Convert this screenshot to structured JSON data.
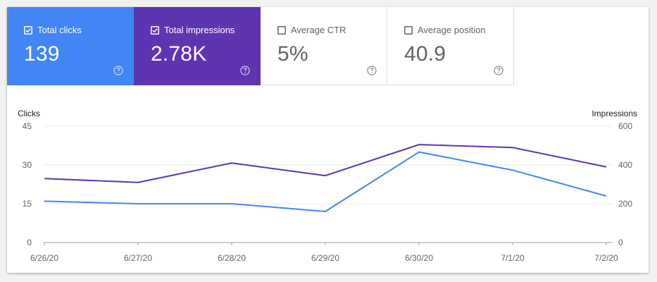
{
  "metrics": [
    {
      "label": "Total clicks",
      "value": "139",
      "checked": true,
      "color": "#4285f4"
    },
    {
      "label": "Total impressions",
      "value": "2.78K",
      "checked": true,
      "color": "#5e35b1"
    },
    {
      "label": "Average CTR",
      "value": "5%",
      "checked": false,
      "color": "#ffffff"
    },
    {
      "label": "Average position",
      "value": "40.9",
      "checked": false,
      "color": "#ffffff"
    }
  ],
  "help_icon": "question-circle-icon",
  "chart_data": {
    "type": "line",
    "categories": [
      "6/26/20",
      "6/27/20",
      "6/28/20",
      "6/29/20",
      "6/30/20",
      "7/1/20",
      "7/2/20"
    ],
    "left_axis": {
      "label": "Clicks",
      "ticks": [
        "0",
        "15",
        "30",
        "45"
      ],
      "range": [
        0,
        45
      ]
    },
    "right_axis": {
      "label": "Impressions",
      "ticks": [
        "0",
        "200",
        "400",
        "600"
      ],
      "range": [
        0,
        600
      ]
    },
    "grid": true,
    "series": [
      {
        "name": "Total clicks",
        "axis": "left",
        "color": "#4285f4",
        "values": [
          16,
          15,
          15,
          12,
          35,
          28,
          18
        ]
      },
      {
        "name": "Total impressions",
        "axis": "right",
        "color": "#5e35b1",
        "values": [
          330,
          310,
          410,
          345,
          505,
          490,
          390
        ]
      }
    ]
  }
}
